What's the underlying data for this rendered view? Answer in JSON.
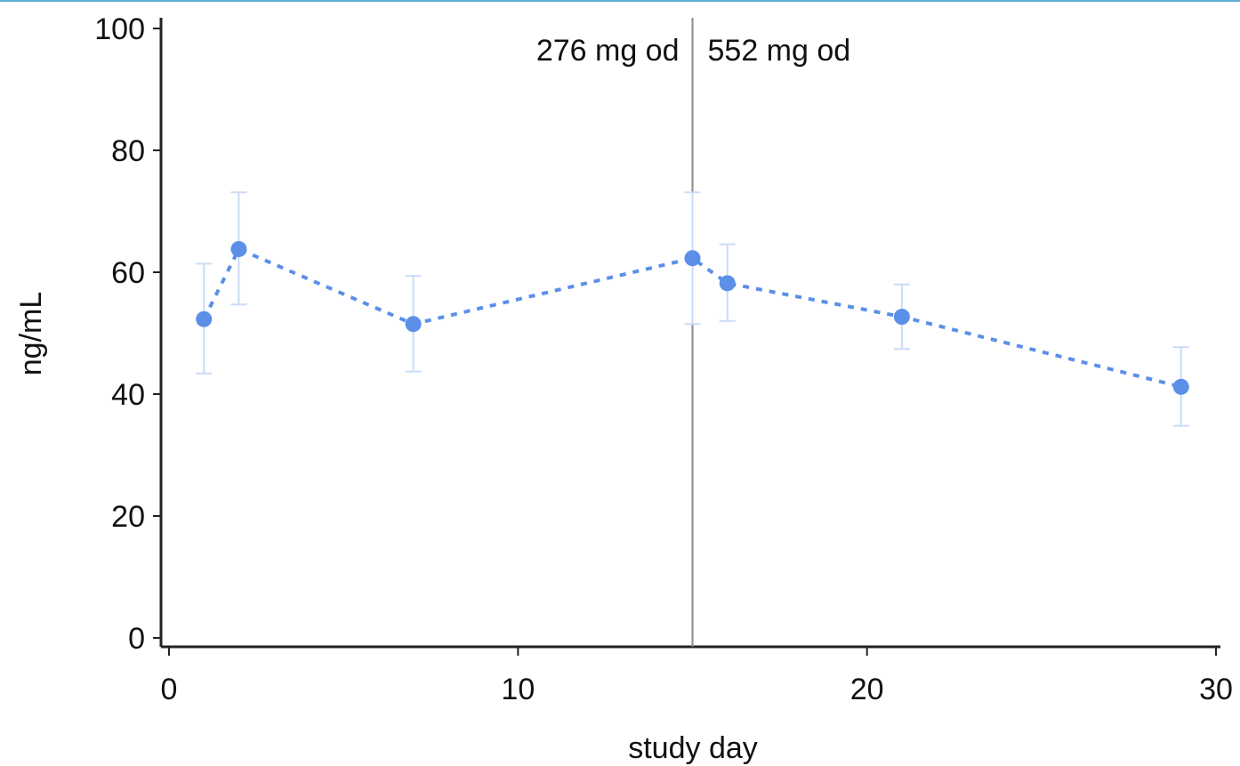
{
  "chart_data": {
    "type": "line",
    "title": "",
    "xlabel": "study day",
    "ylabel": "ng/mL",
    "xlim": [
      0,
      30
    ],
    "ylim": [
      0,
      100
    ],
    "x_ticks": [
      "0",
      "10",
      "20",
      "30"
    ],
    "y_ticks": [
      "0",
      "20",
      "40",
      "60",
      "80",
      "100"
    ],
    "grid": false,
    "series": [
      {
        "x": [
          1,
          2,
          7,
          15,
          16,
          21,
          29
        ],
        "y": [
          52.3,
          63.8,
          51.5,
          62.3,
          58.2,
          52.7,
          41.2
        ],
        "err_low": [
          43.4,
          54.7,
          43.7,
          51.5,
          52.0,
          47.4,
          34.8
        ],
        "err_high": [
          61.4,
          73.1,
          59.4,
          73.1,
          64.6,
          58.0,
          47.7
        ],
        "style": "dotted",
        "color": "#5b8fe8"
      }
    ],
    "vline": {
      "x": 15,
      "label_left": "276 mg od",
      "label_right": "552 mg od"
    }
  }
}
